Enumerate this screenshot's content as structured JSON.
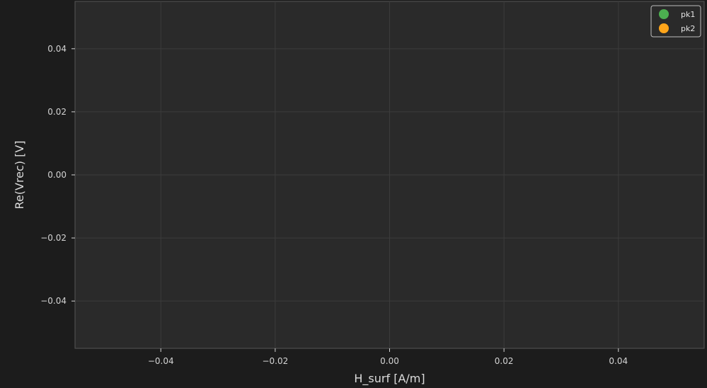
{
  "chart_data": {
    "type": "scatter",
    "xlabel": "H_surf [A/m]",
    "ylabel": "Re(Vrec) [V]",
    "xlim": [
      -0.055,
      0.055
    ],
    "ylim": [
      -0.055,
      0.055
    ],
    "xticks": [
      -0.04,
      -0.02,
      0.0,
      0.02,
      0.04
    ],
    "yticks": [
      -0.04,
      -0.02,
      0.0,
      0.02,
      0.04
    ],
    "xtick_labels": [
      "−0.04",
      "−0.02",
      "0.00",
      "0.02",
      "0.04"
    ],
    "ytick_labels": [
      "−0.04",
      "−0.02",
      "0.00",
      "0.02",
      "0.04"
    ],
    "grid": true,
    "legend_position": "top-right",
    "series": [
      {
        "name": "pk1",
        "color": "#4caf50",
        "x": [],
        "y": []
      },
      {
        "name": "pk2",
        "color": "#ffa51a",
        "x": [],
        "y": []
      }
    ]
  },
  "colors": {
    "figure_background": "#1c1c1c",
    "plot_background": "#2a2a2a",
    "grid": "#3c3c3c",
    "spine": "#555555",
    "text": "#d4d4d4"
  }
}
